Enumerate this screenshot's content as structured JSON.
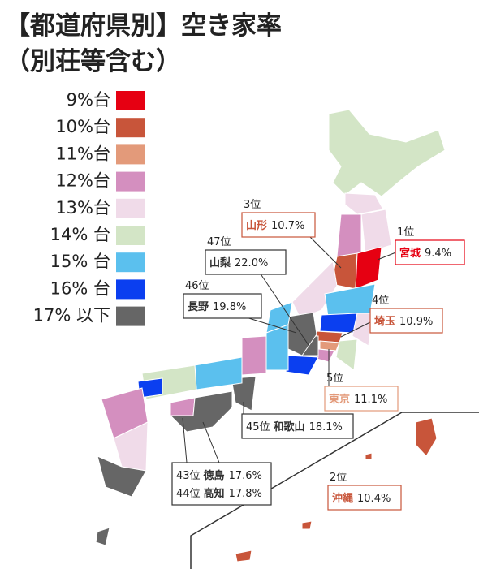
{
  "title": {
    "line1": "【都道府県別】空き家率",
    "line2": "（別荘等含む）"
  },
  "legend": [
    {
      "label": "9%台",
      "color": "#e60012"
    },
    {
      "label": "10%台",
      "color": "#c8553a"
    },
    {
      "label": "11%台",
      "color": "#e39a7a"
    },
    {
      "label": "12%台",
      "color": "#d48fbf"
    },
    {
      "label": "13%台",
      "color": "#f0dbe9"
    },
    {
      "label": "14% 台",
      "color": "#d3e5c6"
    },
    {
      "label": "15% 台",
      "color": "#5bc0ee"
    },
    {
      "label": "16% 台",
      "color": "#0b3ff0"
    },
    {
      "label": "17% 以下",
      "color": "#666666"
    }
  ],
  "callouts": [
    {
      "color": "#c8553a",
      "lines": [
        {
          "rank": "3位",
          "name": "山形",
          "value": "10.7%"
        }
      ]
    },
    {
      "color": "#e60012",
      "lines": [
        {
          "rank": "1位",
          "name": "宮城",
          "value": "9.4%"
        }
      ]
    },
    {
      "color": "#333333",
      "lines": [
        {
          "rank": "47位",
          "name": "山梨",
          "value": "22.0%"
        }
      ]
    },
    {
      "color": "#333333",
      "lines": [
        {
          "rank": "46位",
          "name": "長野",
          "value": "19.8%"
        }
      ]
    },
    {
      "color": "#c8553a",
      "lines": [
        {
          "rank": "4位",
          "name": "埼玉",
          "value": "10.9%"
        }
      ]
    },
    {
      "color": "#e39a7a",
      "lines": [
        {
          "rank": "5位",
          "name": "東京",
          "value": "11.1%"
        }
      ]
    },
    {
      "color": "#c8553a",
      "lines": [
        {
          "rank": "2位",
          "name": "沖縄",
          "value": "10.4%"
        }
      ]
    },
    {
      "color": "#333333",
      "lines": [
        {
          "rank": "45位",
          "name": "和歌山",
          "value": "18.1%"
        }
      ]
    },
    {
      "color": "#333333",
      "lines": [
        {
          "rank": "43位",
          "name": "徳島",
          "value": "17.6%"
        },
        {
          "rank": "44位",
          "name": "高知",
          "value": "17.8%"
        }
      ]
    }
  ]
}
